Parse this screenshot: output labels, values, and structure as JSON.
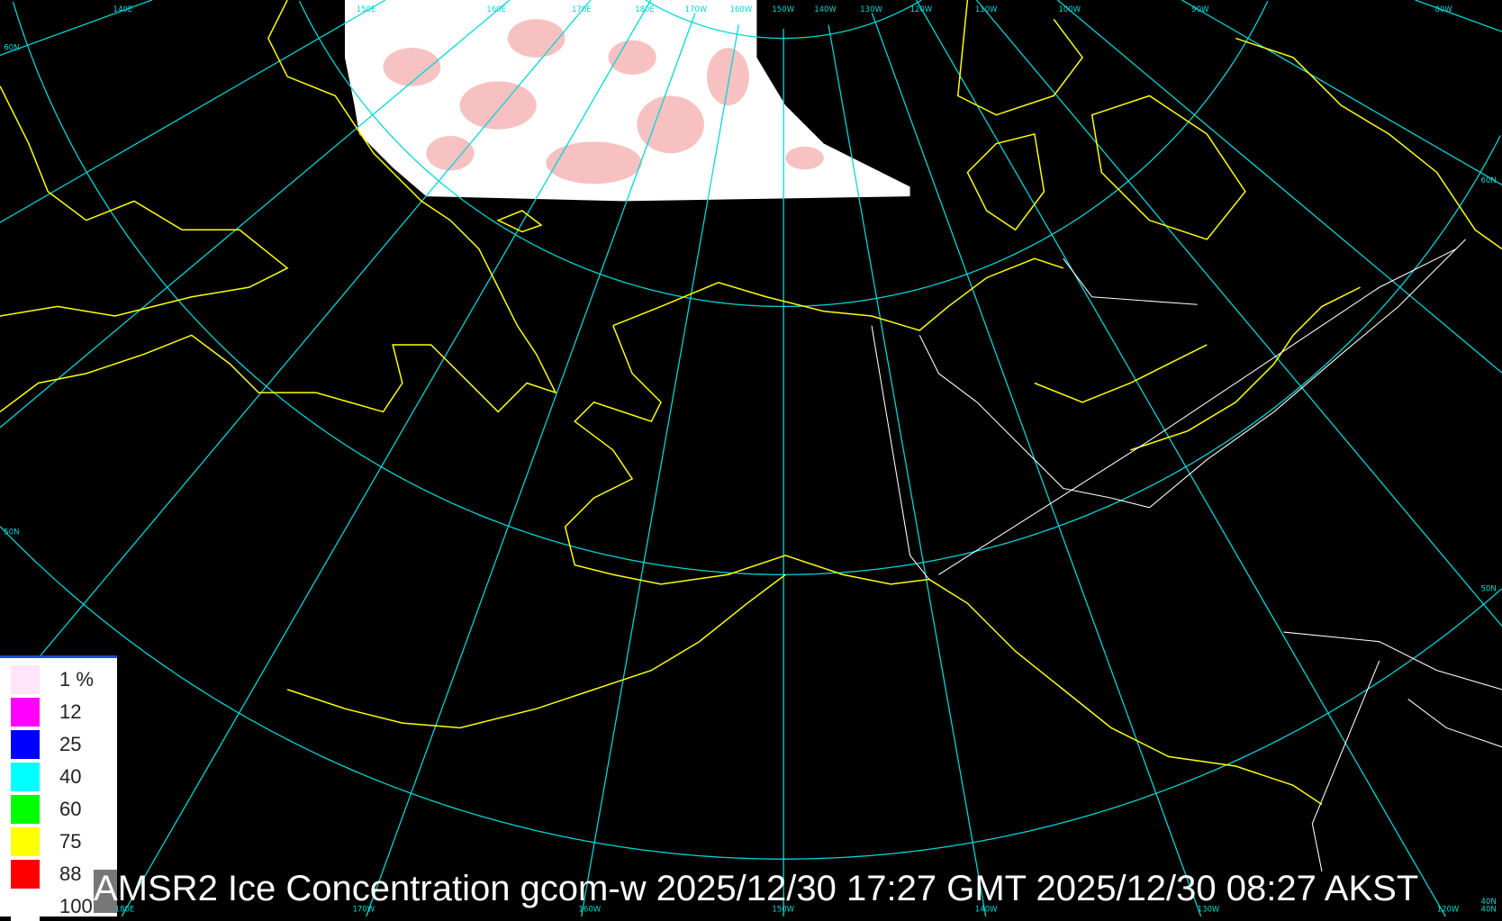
{
  "title": "AMSR2 Ice Concentration gcom-w 2025/12/30 17:27 GMT 2025/12/30 08:27 AKST",
  "legend": [
    {
      "label": "1 %",
      "color": "#ffe4fa"
    },
    {
      "label": "12",
      "color": "#ff00ff"
    },
    {
      "label": "25",
      "color": "#0000ff"
    },
    {
      "label": "40",
      "color": "#00ffff"
    },
    {
      "label": "60",
      "color": "#00ff00"
    },
    {
      "label": "75",
      "color": "#ffff00"
    },
    {
      "label": "88",
      "color": "#ff0000"
    },
    {
      "label": "100",
      "color": "#ffffff"
    }
  ],
  "graticule": {
    "top_labels": [
      "140E",
      "150E",
      "160E",
      "170E",
      "180E",
      "170W",
      "160W",
      "150W",
      "140W",
      "130W",
      "120W",
      "110W",
      "100W",
      "90W",
      "80W"
    ],
    "bottom_labels": [
      "180E",
      "170W",
      "160W",
      "150W",
      "140W",
      "130W",
      "120W",
      "40N"
    ],
    "left_labels": [
      "60N",
      "50N"
    ],
    "right_labels": [
      "60N",
      "50N",
      "40N"
    ]
  },
  "colors": {
    "graticule": "#00d8d8",
    "coastline": "#ffff00",
    "borders": "#ffffff",
    "background": "#000000"
  }
}
